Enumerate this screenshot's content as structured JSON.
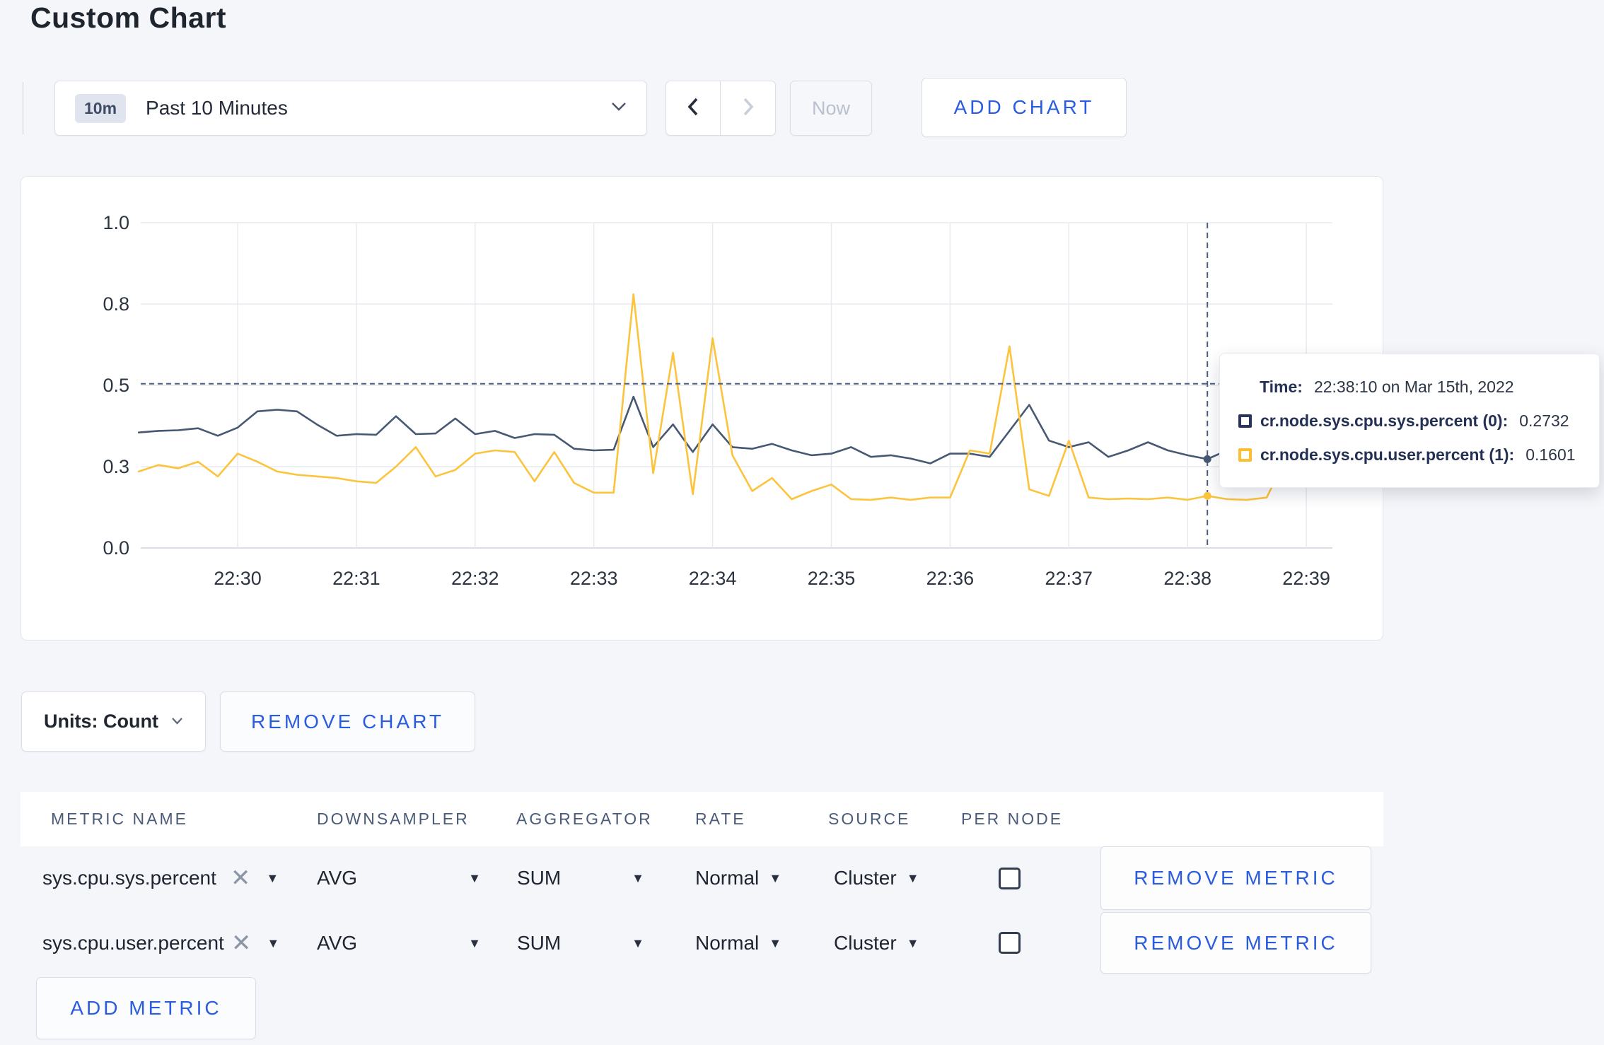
{
  "page": {
    "title": "Custom Chart",
    "background": "#f5f6fa",
    "accent_blue": "#2b5ce0"
  },
  "toolbar": {
    "timeframe_badge": "10m",
    "timeframe_label": "Past 10 Minutes",
    "now_label": "Now",
    "add_chart_label": "ADD CHART"
  },
  "chart_data": {
    "type": "line",
    "title": "",
    "xlabel": "",
    "ylabel": "",
    "ylim": [
      0,
      1
    ],
    "grid": true,
    "legend_position": "none",
    "x_range": [
      "22:29:10",
      "22:39:10"
    ],
    "x_tick_labels": [
      "22:30",
      "22:31",
      "22:32",
      "22:33",
      "22:34",
      "22:35",
      "22:36",
      "22:37",
      "22:38",
      "22:39"
    ],
    "y_ticks": [
      {
        "value": 0,
        "label": "0.0"
      },
      {
        "value": 0.25,
        "label": "0.3"
      },
      {
        "value": 0.5,
        "label": "0.5"
      },
      {
        "value": 0.75,
        "label": "0.8"
      },
      {
        "value": 1,
        "label": "1.0"
      }
    ],
    "sample_interval_seconds": 10,
    "t_start_seconds_rel_2230": -50,
    "series": [
      {
        "name": "cr.node.sys.cpu.sys.percent (0)",
        "color": "#475872",
        "values": [
          0.355,
          0.36,
          0.362,
          0.368,
          0.345,
          0.37,
          0.42,
          0.425,
          0.42,
          0.38,
          0.345,
          0.35,
          0.348,
          0.405,
          0.35,
          0.352,
          0.398,
          0.35,
          0.36,
          0.338,
          0.35,
          0.348,
          0.305,
          0.3,
          0.302,
          0.465,
          0.31,
          0.38,
          0.295,
          0.38,
          0.31,
          0.305,
          0.32,
          0.3,
          0.285,
          0.29,
          0.31,
          0.28,
          0.285,
          0.275,
          0.26,
          0.29,
          0.29,
          0.28,
          0.36,
          0.44,
          0.33,
          0.31,
          0.325,
          0.28,
          0.3,
          0.325,
          0.3,
          0.285,
          0.2732,
          0.3,
          0.31,
          0.3,
          0.305,
          0.3,
          0.31
        ]
      },
      {
        "name": "cr.node.sys.cpu.user.percent (1)",
        "color": "#fcc33c",
        "values": [
          0.235,
          0.255,
          0.245,
          0.265,
          0.22,
          0.29,
          0.265,
          0.235,
          0.225,
          0.22,
          0.215,
          0.205,
          0.2,
          0.25,
          0.31,
          0.22,
          0.24,
          0.29,
          0.3,
          0.295,
          0.205,
          0.295,
          0.2,
          0.17,
          0.17,
          0.78,
          0.23,
          0.6,
          0.165,
          0.645,
          0.285,
          0.175,
          0.215,
          0.15,
          0.175,
          0.195,
          0.15,
          0.148,
          0.155,
          0.148,
          0.155,
          0.155,
          0.3,
          0.29,
          0.62,
          0.18,
          0.16,
          0.33,
          0.155,
          0.15,
          0.152,
          0.15,
          0.155,
          0.148,
          0.1601,
          0.15,
          0.148,
          0.155,
          0.28,
          0.25,
          0.26
        ]
      }
    ],
    "crosshair": {
      "index": 54,
      "time": "22:38:10",
      "hline_value": 0.505
    }
  },
  "tooltip": {
    "time_label": "Time:",
    "time_value": "22:38:10 on Mar 15th, 2022",
    "series": [
      {
        "name": "cr.node.sys.cpu.sys.percent (0):",
        "value": "0.2732",
        "swatch_color": "#2a355e"
      },
      {
        "name": "cr.node.sys.cpu.user.percent (1):",
        "value": "0.1601",
        "swatch_color": "#fcbf2f"
      }
    ]
  },
  "chart_controls": {
    "units_label": "Units: Count",
    "remove_chart_label": "REMOVE CHART"
  },
  "metrics_table": {
    "headers": [
      "METRIC NAME",
      "DOWNSAMPLER",
      "AGGREGATOR",
      "RATE",
      "SOURCE",
      "PER NODE"
    ],
    "rows": [
      {
        "metric": "sys.cpu.sys.percent",
        "downsampler": "AVG",
        "aggregator": "SUM",
        "rate": "Normal",
        "source": "Cluster",
        "per_node_checked": false,
        "remove_label": "REMOVE METRIC"
      },
      {
        "metric": "sys.cpu.user.percent",
        "downsampler": "AVG",
        "aggregator": "SUM",
        "rate": "Normal",
        "source": "Cluster",
        "per_node_checked": false,
        "remove_label": "REMOVE METRIC"
      }
    ],
    "add_metric_label": "ADD METRIC"
  }
}
